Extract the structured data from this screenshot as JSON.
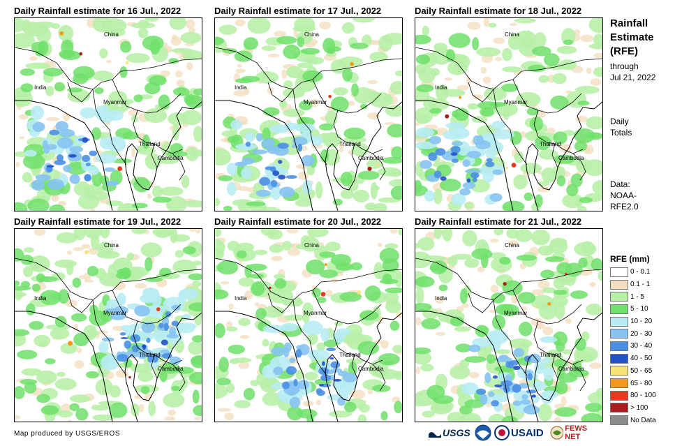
{
  "panels": [
    {
      "title": "Daily Rainfall estimate for 16 Jul., 2022",
      "intensity": 0.55
    },
    {
      "title": "Daily Rainfall estimate for 17 Jul., 2022",
      "intensity": 0.45
    },
    {
      "title": "Daily Rainfall estimate for 18 Jul., 2022",
      "intensity": 0.5
    },
    {
      "title": "Daily Rainfall estimate for 19 Jul., 2022",
      "intensity": 0.7
    },
    {
      "title": "Daily Rainfall estimate for 20 Jul., 2022",
      "intensity": 0.6
    },
    {
      "title": "Daily Rainfall estimate for 21 Jul., 2022",
      "intensity": 0.6
    }
  ],
  "countries": {
    "china": "China",
    "india": "India",
    "myanmar": "Myanmar",
    "thailand": "Thailand",
    "cambodia": "Cambodia"
  },
  "side": {
    "title_line1": "Rainfall",
    "title_line2": "Estimate",
    "title_line3": "(RFE)",
    "through": "through",
    "date": "Jul 21, 2022",
    "daily": "Daily",
    "totals": "Totals",
    "data_label": "Data:",
    "source_line1": "NOAA-",
    "source_line2": "RFE2.0"
  },
  "legend": {
    "title": "RFE (mm)",
    "items": [
      {
        "label": "0 - 0.1",
        "color": "#ffffff"
      },
      {
        "label": "0.1 - 1",
        "color": "#f2dfbf"
      },
      {
        "label": "1 - 5",
        "color": "#b8f0a8"
      },
      {
        "label": "5 - 10",
        "color": "#6fe06a"
      },
      {
        "label": "10 - 20",
        "color": "#b8ecf4"
      },
      {
        "label": "20 - 30",
        "color": "#86c3f2"
      },
      {
        "label": "30 - 40",
        "color": "#4a8fe6"
      },
      {
        "label": "40 - 50",
        "color": "#2250c8"
      },
      {
        "label": "50 - 65",
        "color": "#f8e27a"
      },
      {
        "label": "65 - 80",
        "color": "#f39a1a"
      },
      {
        "label": "80 - 100",
        "color": "#e53a1c"
      },
      {
        "label": "> 100",
        "color": "#a81e1e"
      },
      {
        "label": "No Data",
        "color": "#8c8c8c"
      }
    ]
  },
  "credit": "Map produced by USGS/EROS",
  "logos": {
    "usgs": "USGS",
    "usaid": "USAID",
    "fewsnet": "FEWS NET"
  }
}
